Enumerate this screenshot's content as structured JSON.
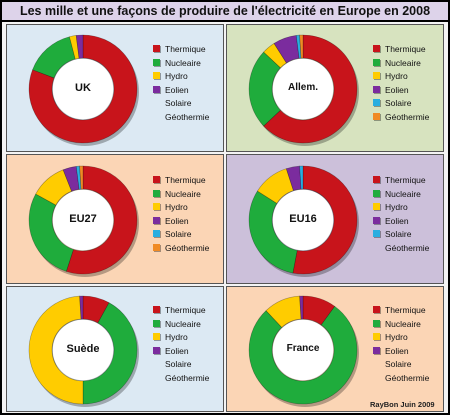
{
  "title": "Les mille et une façons de produire de l'électricité en Europe en 2008",
  "footer": "RayBon Juin 2009",
  "colors": {
    "Thermique": "#c8141b",
    "Nucleaire": "#1fac3c",
    "Hydro": "#ffcc00",
    "Eolien": "#7b2c9e",
    "Solaire": "#29aee0",
    "Géothermie": "#f08a24"
  },
  "panel_backgrounds": {
    "UK": "#dce9f3",
    "Allem.": "#d7e3bf",
    "EU27": "#fbd5b5",
    "EU16": "#ccc0da",
    "Suède": "#dce9f3",
    "France": "#fbd5b5"
  },
  "chart_data": [
    {
      "type": "pie",
      "donut": true,
      "label": "UK",
      "categories": [
        "Thermique",
        "Nucleaire",
        "Hydro",
        "Eolien",
        "Solaire",
        "Géothermie"
      ],
      "values": [
        80,
        15,
        2,
        2,
        0,
        0
      ]
    },
    {
      "type": "pie",
      "donut": true,
      "label": "Allem.",
      "categories": [
        "Thermique",
        "Nucleaire",
        "Hydro",
        "Eolien",
        "Solaire",
        "Géothermie"
      ],
      "values": [
        63,
        24,
        4,
        7,
        1,
        1
      ]
    },
    {
      "type": "pie",
      "donut": true,
      "label": "EU27",
      "categories": [
        "Thermique",
        "Nucleaire",
        "Hydro",
        "Eolien",
        "Solaire",
        "Géothermie"
      ],
      "values": [
        55,
        28,
        11,
        4,
        1,
        1
      ]
    },
    {
      "type": "pie",
      "donut": true,
      "label": "EU16",
      "categories": [
        "Thermique",
        "Nucleaire",
        "Hydro",
        "Eolien",
        "Solaire",
        "Géothermie"
      ],
      "values": [
        53,
        31,
        11,
        4,
        1,
        0
      ]
    },
    {
      "type": "pie",
      "donut": true,
      "label": "Suède",
      "categories": [
        "Thermique",
        "Nucleaire",
        "Hydro",
        "Eolien",
        "Solaire",
        "Géothermie"
      ],
      "values": [
        8,
        42,
        49,
        1,
        0,
        0
      ]
    },
    {
      "type": "pie",
      "donut": true,
      "label": "France",
      "categories": [
        "Thermique",
        "Nucleaire",
        "Hydro",
        "Eolien",
        "Solaire",
        "Géothermie"
      ],
      "values": [
        10,
        78,
        11,
        1,
        0,
        0
      ]
    }
  ]
}
